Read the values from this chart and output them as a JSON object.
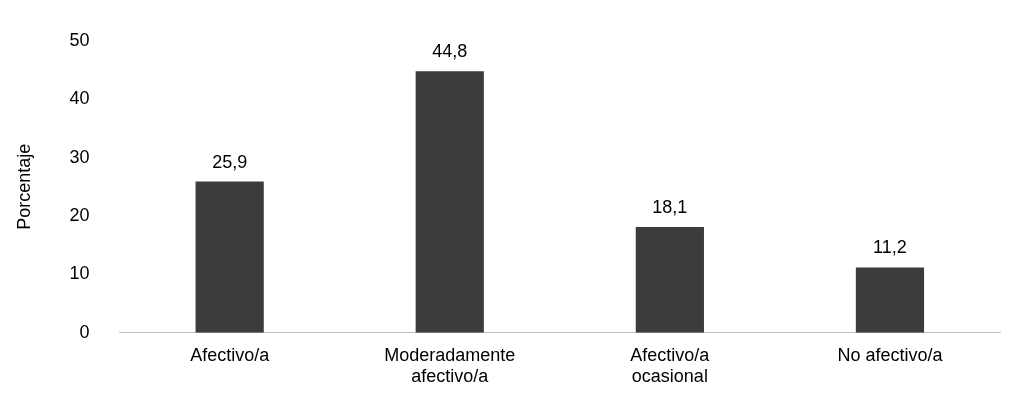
{
  "chart_data": {
    "type": "bar",
    "ylabel": "Porcentaje",
    "categories": [
      "Afectivo/a",
      "Moderadamente afectivo/a",
      "Afectivo/a ocasional",
      "No afectivo/a"
    ],
    "values": [
      25.9,
      44.8,
      18.1,
      11.2
    ],
    "value_labels": [
      "25,9",
      "44,8",
      "18,1",
      "11,2"
    ],
    "color": "#3c3c3c",
    "ylim": [
      0,
      50
    ],
    "yticks": [
      0,
      10,
      20,
      30,
      40,
      50
    ],
    "grid": false,
    "legend": false
  }
}
